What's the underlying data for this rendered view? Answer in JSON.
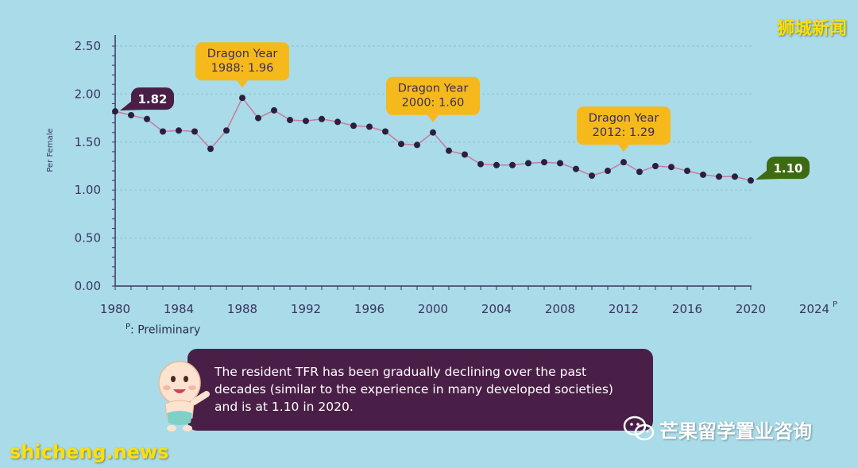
{
  "chart_data": {
    "type": "line",
    "ylabel": "Per Female",
    "xlabel": "",
    "ylim": [
      0,
      2.5
    ],
    "xlim": [
      1980,
      2024
    ],
    "y_ticks": [
      "0.00",
      "0.50",
      "1.00",
      "1.50",
      "2.00",
      "2.50"
    ],
    "x_ticks": [
      "1980",
      "1984",
      "1988",
      "1992",
      "1996",
      "2000",
      "2004",
      "2008",
      "2012",
      "2016",
      "2020",
      "2024"
    ],
    "x_tick_superscript": {
      "2024": "P"
    },
    "series": [
      {
        "name": "",
        "x": [
          1980,
          1981,
          1982,
          1983,
          1984,
          1985,
          1986,
          1987,
          1988,
          1989,
          1990,
          1991,
          1992,
          1993,
          1994,
          1995,
          1996,
          1997,
          1998,
          1999,
          2000,
          2001,
          2002,
          2003,
          2004,
          2005,
          2006,
          2007,
          2008,
          2009,
          2010,
          2011,
          2012,
          2013,
          2014,
          2015,
          2016,
          2017,
          2018,
          2019,
          2020
        ],
        "y": [
          1.82,
          1.78,
          1.74,
          1.61,
          1.62,
          1.61,
          1.43,
          1.62,
          1.96,
          1.75,
          1.83,
          1.73,
          1.72,
          1.74,
          1.71,
          1.67,
          1.66,
          1.61,
          1.48,
          1.47,
          1.6,
          1.41,
          1.37,
          1.27,
          1.26,
          1.26,
          1.28,
          1.29,
          1.28,
          1.22,
          1.15,
          1.2,
          1.29,
          1.19,
          1.25,
          1.24,
          1.2,
          1.16,
          1.14,
          1.14,
          1.1
        ]
      }
    ],
    "annotations": [
      {
        "id": "start",
        "style": "dark",
        "x": 1980,
        "y": 1.82,
        "lines": [
          "1.82"
        ]
      },
      {
        "id": "dragon1988",
        "style": "yellow",
        "x": 1988,
        "y": 1.96,
        "lines": [
          "Dragon Year",
          "1988: 1.96"
        ]
      },
      {
        "id": "dragon2000",
        "style": "yellow",
        "x": 2000,
        "y": 1.6,
        "lines": [
          "Dragon Year",
          "2000: 1.60"
        ]
      },
      {
        "id": "dragon2012",
        "style": "yellow",
        "x": 2012,
        "y": 1.29,
        "lines": [
          "Dragon Year",
          "2012: 1.29"
        ]
      },
      {
        "id": "end",
        "style": "green",
        "x": 2020,
        "y": 1.1,
        "lines": [
          "1.10"
        ]
      }
    ],
    "grid": "horizontal-dashed",
    "colors": {
      "background": "#a9dbe8",
      "line": "#c77b9a",
      "marker": "#2b1f3f",
      "grid": "#8fc7d6",
      "axis": "#3a3560",
      "callout_yellow": "#f6b91c",
      "callout_yellow_text": "#3a2e5a",
      "callout_dark": "#4a1f47",
      "callout_green": "#3d6b12"
    }
  },
  "footnote": {
    "marker": "P",
    "text": ": Preliminary"
  },
  "note": "The resident TFR has been gradually declining over the past decades (similar to the experience in many developed societies) and is at 1.10 in 2020.",
  "watermarks": {
    "top_right": "狮城新闻",
    "bottom_left": "shicheng.news",
    "wechat": "芒果留学置业咨询",
    "wechat_icon": "wechat-icon"
  }
}
